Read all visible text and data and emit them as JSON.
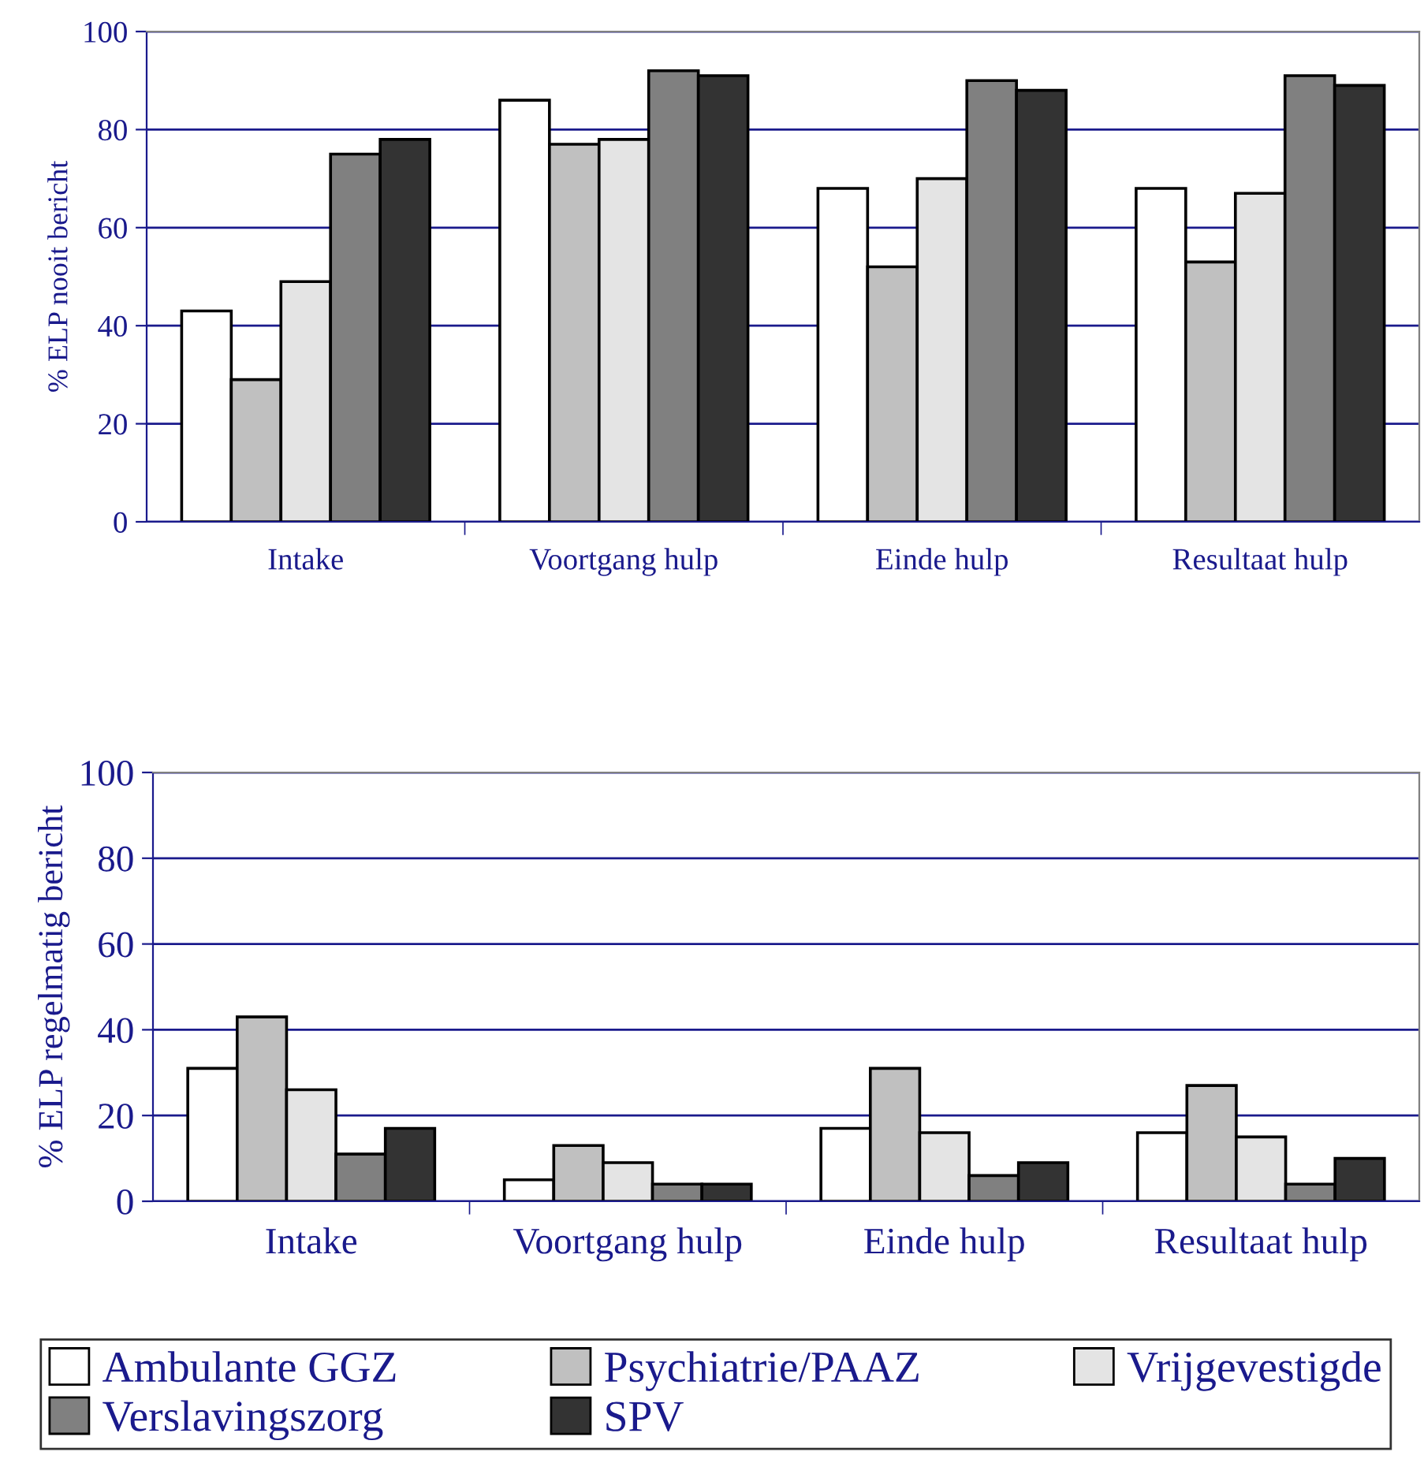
{
  "chart_data": [
    {
      "type": "bar",
      "ylabel": "% ELP nooit bericht",
      "categories": [
        "Intake",
        "Voortgang hulp",
        "Einde hulp",
        "Resultaat hulp"
      ],
      "ylim": [
        0,
        100
      ],
      "yticks": [
        0,
        20,
        40,
        60,
        80,
        100
      ],
      "grid": "y",
      "legend": "bottom",
      "series": [
        {
          "name": "Ambulante GGZ",
          "color": "#ffffff",
          "values": [
            43,
            86,
            68,
            68
          ]
        },
        {
          "name": "Psychiatrie/PAAZ",
          "color": "#c0c0c0",
          "values": [
            29,
            77,
            52,
            53
          ]
        },
        {
          "name": "Vrijgevestigde",
          "color": "#e4e4e4",
          "values": [
            49,
            78,
            70,
            67
          ]
        },
        {
          "name": "Verslavingszorg",
          "color": "#808080",
          "values": [
            75,
            92,
            90,
            91
          ]
        },
        {
          "name": "SPV",
          "color": "#333333",
          "values": [
            78,
            91,
            88,
            89
          ]
        }
      ]
    },
    {
      "type": "bar",
      "ylabel": "% ELP regelmatig bericht",
      "categories": [
        "Intake",
        "Voortgang hulp",
        "Einde hulp",
        "Resultaat hulp"
      ],
      "ylim": [
        0,
        100
      ],
      "yticks": [
        0,
        20,
        40,
        60,
        80,
        100
      ],
      "grid": "y",
      "series": [
        {
          "color": "#ffffff",
          "values": [
            31,
            5,
            17,
            16
          ]
        },
        {
          "color": "#c0c0c0",
          "values": [
            43,
            13,
            31,
            27
          ]
        },
        {
          "color": "#e4e4e4",
          "values": [
            26,
            9,
            16,
            15
          ]
        },
        {
          "color": "#808080",
          "values": [
            11,
            4,
            6,
            4
          ]
        },
        {
          "color": "#333333",
          "values": [
            17,
            4,
            9,
            10
          ]
        }
      ]
    }
  ]
}
